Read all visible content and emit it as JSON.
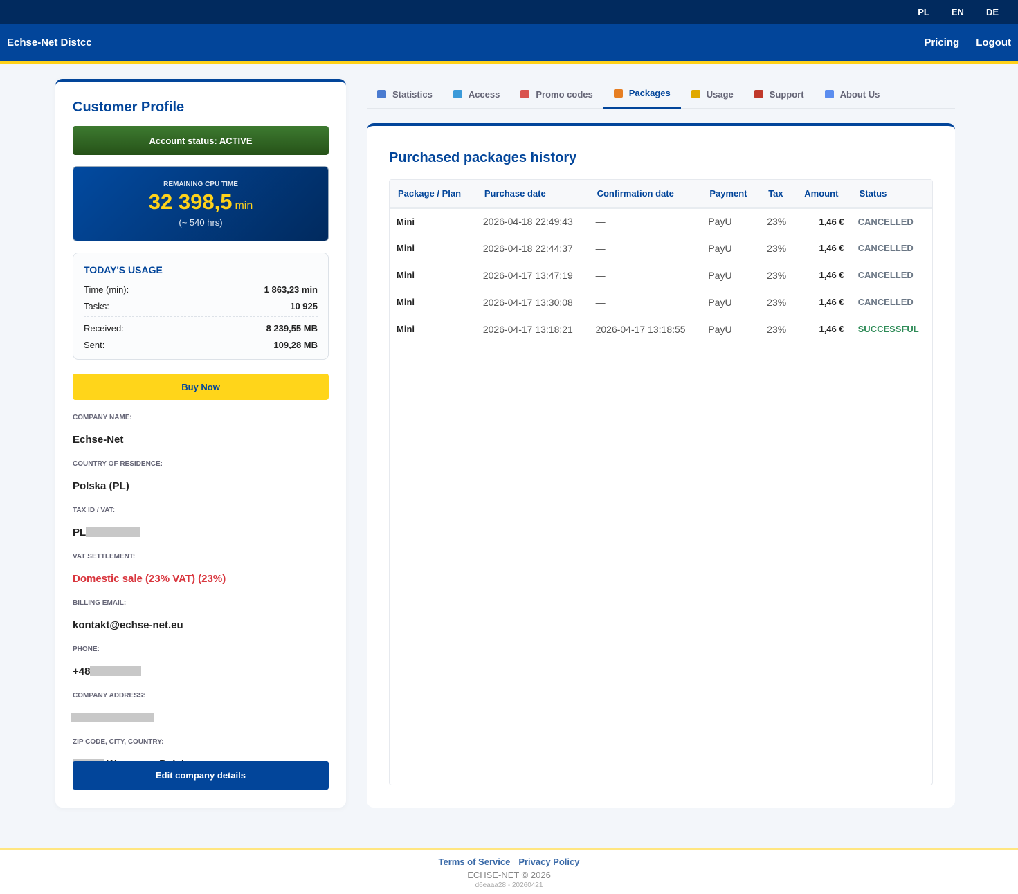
{
  "topbar": {
    "languages": [
      "PL",
      "EN",
      "DE"
    ]
  },
  "navbar": {
    "brand": "Echse-Net Distcc",
    "links": [
      "Pricing",
      "Logout"
    ]
  },
  "profile": {
    "title": "Customer Profile",
    "account_status": "Account status: ACTIVE",
    "cpu": {
      "label": "REMAINING CPU TIME",
      "value": "32 398,5",
      "unit": "min",
      "hours": "(~ 540 hrs)"
    },
    "usage": {
      "title": "TODAY'S USAGE",
      "rows": [
        [
          "Time (min):",
          "1 863,23 min"
        ],
        [
          "Tasks:",
          "10 925"
        ],
        [
          "Received:",
          "8 239,55 MB"
        ],
        [
          "Sent:",
          "109,28 MB"
        ]
      ]
    },
    "buy": "Buy Now",
    "fields": [
      {
        "label": "COMPANY NAME:",
        "value": "Echse-Net"
      },
      {
        "label": "COUNTRY OF RESIDENCE:",
        "value": "Polska (PL)"
      },
      {
        "label": "TAX ID / VAT:",
        "value": "PL"
      },
      {
        "label": "VAT SETTLEMENT:",
        "value": "Domestic sale (23% VAT) (23%)",
        "color": "#d9363e"
      },
      {
        "label": "BILLING EMAIL:",
        "value": "kontakt@echse-net.eu"
      },
      {
        "label": "PHONE:",
        "value": "+48"
      },
      {
        "label": "COMPANY ADDRESS:"
      },
      {
        "label": "ZIP CODE, CITY, COUNTRY:",
        "value": "Warszawa Polska"
      }
    ],
    "edit": "Edit company details"
  },
  "tabs": {
    "items": [
      "Statistics",
      "Access",
      "Promo codes",
      "Packages",
      "Usage",
      "Support",
      "About Us"
    ],
    "active": 3
  },
  "packages": {
    "title": "Purchased packages history",
    "table": {
      "headers": [
        "Package / Plan",
        "Purchase date",
        "Confirmation date",
        "Payment",
        "Tax",
        "Amount",
        "Status"
      ],
      "rows": [
        [
          "Mini",
          "2026-04-18 22:49:43",
          "—",
          "PayU",
          "23%",
          "1,46 €",
          "CANCELLED"
        ],
        [
          "Mini",
          "2026-04-18 22:44:37",
          "—",
          "PayU",
          "23%",
          "1,46 €",
          "CANCELLED"
        ],
        [
          "Mini",
          "2026-04-17 13:47:19",
          "—",
          "PayU",
          "23%",
          "1,46 €",
          "CANCELLED"
        ],
        [
          "Mini",
          "2026-04-17 13:30:08",
          "—",
          "PayU",
          "23%",
          "1,46 €",
          "CANCELLED"
        ],
        [
          "Mini",
          "2026-04-17 13:18:21",
          "2026-04-17 13:18:55",
          "PayU",
          "23%",
          "1,46 €",
          "SUCCESSFUL"
        ]
      ],
      "status_colors": [
        "#6b7785",
        "#6b7785",
        "#6b7785",
        "#6b7785",
        "#2e8b57"
      ]
    }
  },
  "footer": {
    "links": [
      "Terms of Service",
      "Privacy Policy"
    ],
    "copyright": "ECHSE-NET © 2026",
    "build": "d6eaaa28 - 20260421"
  }
}
